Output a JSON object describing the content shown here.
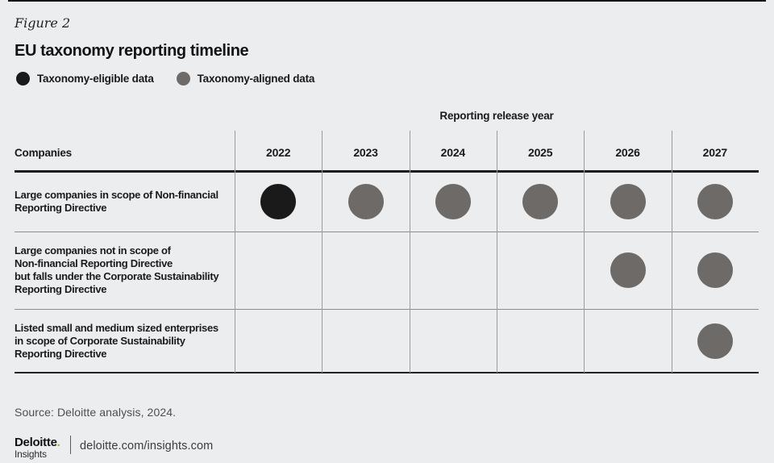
{
  "page": {
    "figure_label": "Figure 2",
    "title": "EU taxonomy reporting timeline",
    "source": "Source: Deloitte analysis, 2024."
  },
  "legend": {
    "items": [
      {
        "key": "eligible",
        "label": "Taxonomy-eligible data",
        "color": "#1a1a1a"
      },
      {
        "key": "aligned",
        "label": "Taxonomy-aligned data",
        "color": "#6d6a68"
      }
    ]
  },
  "table": {
    "group_header": "Reporting release year",
    "companies_header": "Companies",
    "years": [
      "2022",
      "2023",
      "2024",
      "2025",
      "2026",
      "2027"
    ],
    "rows": [
      {
        "company_lines": [
          "Large companies in scope of Non-financial",
          "Reporting Directive"
        ],
        "cells": [
          "eligible",
          "aligned",
          "aligned",
          "aligned",
          "aligned",
          "aligned"
        ]
      },
      {
        "company_lines": [
          "Large companies not in scope of",
          "Non-financial Reporting Directive",
          "but falls under the Corporate Sustainability",
          "Reporting Directive"
        ],
        "cells": [
          "",
          "",
          "",
          "",
          "aligned",
          "aligned"
        ]
      },
      {
        "company_lines": [
          "Listed small and medium sized enterprises",
          "in scope of Corporate Sustainability",
          "Reporting Directive"
        ],
        "cells": [
          "",
          "",
          "",
          "",
          "",
          "aligned"
        ]
      }
    ]
  },
  "footer": {
    "brand": "Deloitte",
    "brand_period": ".",
    "brand_sub": "Insights",
    "url": "deloitte.com/insights.com"
  },
  "colors": {
    "background": "#ebedee",
    "eligible": "#1a1a1a",
    "aligned": "#6d6a68",
    "accent_green": "#86bc25",
    "grid_line": "#9b9b9b",
    "row_divider": "#8d8d8d",
    "rule": "#1a1a1a"
  },
  "chart_data": {
    "type": "table",
    "title": "EU taxonomy reporting timeline",
    "group_header": "Reporting release year",
    "categories": [
      "2022",
      "2023",
      "2024",
      "2025",
      "2026",
      "2027"
    ],
    "legend": [
      "Taxonomy-eligible data",
      "Taxonomy-aligned data"
    ],
    "rows": [
      {
        "name": "Large companies in scope of Non-financial Reporting Directive",
        "values": [
          "eligible",
          "aligned",
          "aligned",
          "aligned",
          "aligned",
          "aligned"
        ]
      },
      {
        "name": "Large companies not in scope of Non-financial Reporting Directive but falls under the Corporate Sustainability Reporting Directive",
        "values": [
          null,
          null,
          null,
          null,
          "aligned",
          "aligned"
        ]
      },
      {
        "name": "Listed small and medium sized enterprises in scope of Corporate Sustainability Reporting Directive",
        "values": [
          null,
          null,
          null,
          null,
          null,
          "aligned"
        ]
      }
    ]
  }
}
